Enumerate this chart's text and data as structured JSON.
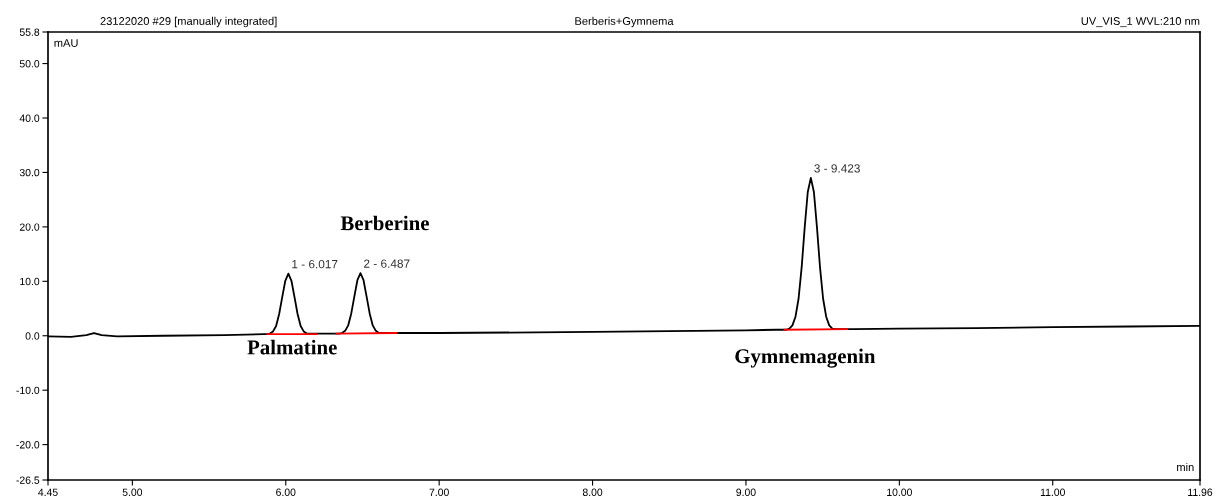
{
  "chart_data": {
    "type": "line",
    "title": "Berberis+Gymnema",
    "subtitle": "23122020 #29 [manually integrated]",
    "xlabel": "min",
    "ylabel": "mAU",
    "annotations": [
      "UV_VIS_1 WVL:210 nm",
      {
        "text": "1 - 6.017",
        "x": 6.017,
        "y": 11.4
      },
      {
        "text": "2 - 6.487",
        "x": 6.487,
        "y": 11.5
      },
      {
        "text": "3 - 9.423",
        "x": 9.423,
        "y": 29.0
      },
      "Palmatine",
      "Berberine",
      "Gymnemagenin"
    ],
    "series": [
      {
        "color": "#000000",
        "x": [
          4.45,
          4.6,
          4.7,
          4.75,
          4.8,
          4.9,
          5.2,
          5.6,
          5.857,
          5.877,
          5.897,
          5.917,
          5.937,
          5.957,
          5.977,
          5.997,
          6.017,
          6.037,
          6.057,
          6.077,
          6.097,
          6.117,
          6.137,
          6.157,
          6.25,
          6.327,
          6.347,
          6.367,
          6.387,
          6.407,
          6.427,
          6.447,
          6.467,
          6.487,
          6.507,
          6.527,
          6.547,
          6.567,
          6.587,
          6.607,
          6.627,
          6.7,
          7.0,
          8.0,
          9.0,
          9.2,
          9.263,
          9.283,
          9.303,
          9.323,
          9.343,
          9.363,
          9.383,
          9.403,
          9.423,
          9.443,
          9.463,
          9.483,
          9.503,
          9.523,
          9.543,
          9.563,
          9.583,
          9.7,
          10.0,
          10.5,
          11.0,
          11.5,
          11.96
        ],
        "values": [
          -0.1,
          -0.2,
          0.1,
          0.5,
          0.1,
          -0.1,
          0.0,
          0.1,
          0.3,
          0.3,
          0.4,
          0.8,
          1.8,
          4.0,
          7.1,
          10.1,
          11.4,
          10.1,
          7.1,
          4.0,
          1.8,
          0.8,
          0.4,
          0.4,
          0.4,
          0.4,
          0.4,
          0.5,
          0.9,
          1.9,
          4.1,
          7.2,
          10.2,
          11.5,
          10.2,
          7.2,
          4.1,
          1.9,
          0.9,
          0.5,
          0.5,
          0.5,
          0.5,
          0.7,
          1.0,
          1.1,
          1.1,
          1.3,
          1.9,
          3.5,
          6.8,
          12.5,
          19.9,
          26.4,
          29.0,
          26.4,
          19.9,
          12.5,
          6.8,
          3.5,
          1.9,
          1.3,
          1.2,
          1.2,
          1.3,
          1.4,
          1.6,
          1.7,
          1.8
        ]
      },
      {
        "color": "#ff0000",
        "x": [
          5.88,
          6.2
        ],
        "values": [
          0.3,
          0.3
        ]
      },
      {
        "color": "#ff0000",
        "x": [
          6.33,
          6.72
        ],
        "values": [
          0.4,
          0.5
        ]
      },
      {
        "color": "#ff0000",
        "x": [
          9.25,
          9.66
        ],
        "values": [
          1.1,
          1.2
        ]
      }
    ],
    "xlim": [
      4.45,
      11.96
    ],
    "xticks": [
      4.45,
      {
        "value": 5,
        "label": "5.00"
      },
      {
        "value": 6,
        "label": "6.00"
      },
      {
        "value": 7,
        "label": "7.00"
      },
      {
        "value": 8,
        "label": "8.00"
      },
      {
        "value": 9,
        "label": "9.00"
      },
      {
        "value": 10,
        "label": "10.00"
      },
      {
        "value": 11,
        "label": "11.00"
      },
      11.96
    ],
    "ylim": [
      -26.5,
      55.8
    ],
    "yticks": [
      -26.5,
      {
        "value": -20,
        "label": "-20.0"
      },
      {
        "value": -10,
        "label": "-10.0"
      },
      {
        "value": 0,
        "label": "0.0"
      },
      {
        "value": 10,
        "label": "10.0"
      },
      {
        "value": 20,
        "label": "20.0"
      },
      {
        "value": 30,
        "label": "30.0"
      },
      {
        "value": 40,
        "label": "40.0"
      },
      {
        "value": 50,
        "label": "50.0"
      },
      55.8
    ],
    "grid": false,
    "legend": false,
    "marker": "none",
    "line_style": "solid"
  }
}
